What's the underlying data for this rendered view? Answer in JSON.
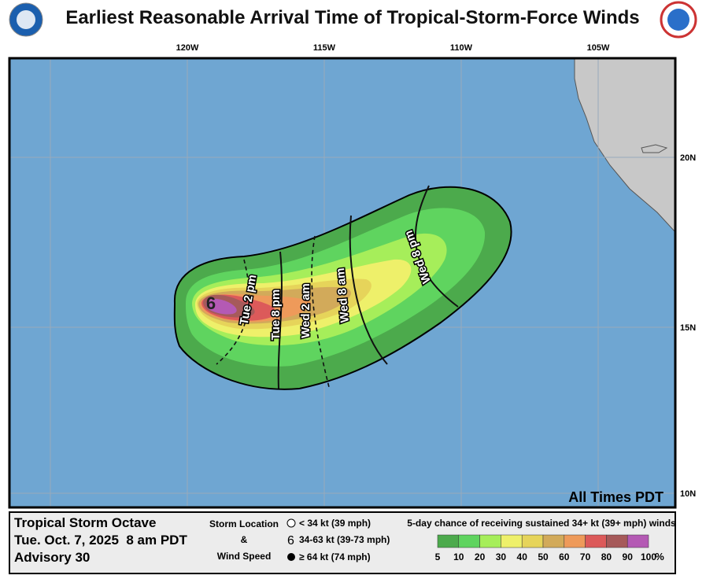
{
  "header": {
    "title": "Earliest Reasonable Arrival Time of Tropical-Storm-Force Winds"
  },
  "map": {
    "lon_labels": [
      "120W",
      "115W",
      "110W",
      "105W"
    ],
    "lat_labels": [
      "20N",
      "15N",
      "10N"
    ],
    "time_labels": [
      "Tue 2 pm",
      "Tue 8 pm",
      "Wed 2 am",
      "Wed 8 am",
      "Wed 8 pm"
    ],
    "timezone_note": "All Times PDT"
  },
  "footer": {
    "storm_name": "Tropical Storm Octave",
    "datetime": "Tue. Oct. 7, 2025  8 am PDT",
    "advisory": "Advisory 30",
    "location_title": "Storm Location",
    "amp": "&",
    "wind_title": "Wind Speed",
    "key": [
      "< 34 kt (39 mph)",
      "34-63 kt (39-73 mph)",
      "≥ 64 kt (74 mph)"
    ],
    "scale_title": "5-day chance of receiving sustained 34+ kt (39+ mph) winds",
    "scale_labels": [
      "5",
      "10",
      "20",
      "30",
      "40",
      "50",
      "60",
      "70",
      "80",
      "90",
      "100"
    ],
    "scale_unit": "%",
    "scale_colors": [
      "#4caa4c",
      "#5fd45f",
      "#a6ee5a",
      "#eef06a",
      "#e6d45a",
      "#d2aa5a",
      "#ee9a5a",
      "#dc5a5a",
      "#a65a5a",
      "#b45ab4"
    ]
  }
}
